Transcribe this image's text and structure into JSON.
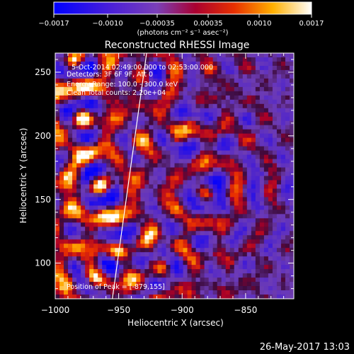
{
  "colorbar": {
    "ticks": [
      "-0.0017",
      "-0.0010",
      "-0.00035",
      "0.00035",
      "0.0010",
      "0.0017"
    ],
    "unit_label": "(photons cm⁻² s⁻¹ asec⁻²)",
    "range": [
      -0.0017,
      0.0017
    ],
    "colors": [
      "#0000ff",
      "#7f3fbf",
      "#ffffff"
    ]
  },
  "chart_data": {
    "type": "heatmap",
    "title": "Reconstructed RHESSI Image",
    "xlabel": "Heliocentric X (arcsec)",
    "ylabel": "Heliocentric Y (arcsec)",
    "xlim": [
      -1000,
      -812
    ],
    "ylim": [
      72,
      265
    ],
    "x_ticks": [
      {
        "value": -1000,
        "label": "−1000"
      },
      {
        "value": -950,
        "label": "−950"
      },
      {
        "value": -900,
        "label": "−900"
      },
      {
        "value": -850,
        "label": "−850"
      }
    ],
    "y_ticks": [
      {
        "value": 100,
        "label": "100"
      },
      {
        "value": 150,
        "label": "150"
      },
      {
        "value": 200,
        "label": "200"
      },
      {
        "value": 250,
        "label": "250"
      }
    ],
    "annotations": [
      "5-Oct-2014 02:49:00.000 to 02:53:00.000",
      "Detectors: 3F 6F 9F, Att 0",
      "Energy Range: 100.0 - 300.0 keV",
      "Clean     Total counts: 2.20e+04"
    ],
    "peak_label": "Position of Peak = [-879,155]",
    "peak": [
      -879,
      155
    ],
    "limb_line": [
      [
        -955,
        72
      ],
      [
        -928,
        265
      ]
    ],
    "hot_spots": [
      {
        "x": -965,
        "y": 160,
        "amp": 1.0
      },
      {
        "x": -980,
        "y": 215,
        "amp": 0.75
      },
      {
        "x": -985,
        "y": 260,
        "amp": 0.7
      },
      {
        "x": -930,
        "y": 245,
        "amp": 0.55
      },
      {
        "x": -880,
        "y": 155,
        "amp": 0.85
      },
      {
        "x": -905,
        "y": 185,
        "amp": 0.55
      },
      {
        "x": -950,
        "y": 110,
        "amp": 0.6
      },
      {
        "x": -915,
        "y": 95,
        "amp": 0.55
      },
      {
        "x": -970,
        "y": 90,
        "amp": 0.5
      },
      {
        "x": -890,
        "y": 225,
        "amp": 0.45
      }
    ]
  },
  "timestamp": "26-May-2017 13:03"
}
